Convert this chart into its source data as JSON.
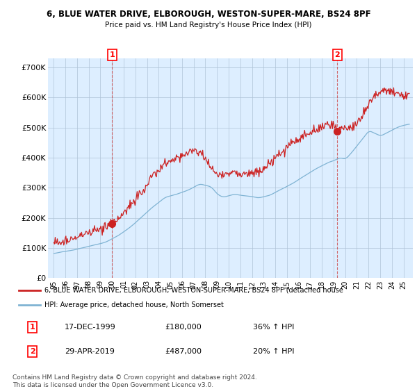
{
  "title": "6, BLUE WATER DRIVE, ELBOROUGH, WESTON-SUPER-MARE, BS24 8PF",
  "subtitle": "Price paid vs. HM Land Registry's House Price Index (HPI)",
  "ylabel_ticks": [
    "£0",
    "£100K",
    "£200K",
    "£300K",
    "£400K",
    "£500K",
    "£600K",
    "£700K"
  ],
  "ytick_vals": [
    0,
    100000,
    200000,
    300000,
    400000,
    500000,
    600000,
    700000
  ],
  "ylim": [
    0,
    730000
  ],
  "xlim_start": 1994.5,
  "xlim_end": 2025.8,
  "xtick_years": [
    1995,
    1996,
    1997,
    1998,
    1999,
    2000,
    2001,
    2002,
    2003,
    2004,
    2005,
    2006,
    2007,
    2008,
    2009,
    2010,
    2011,
    2012,
    2013,
    2014,
    2015,
    2016,
    2017,
    2018,
    2019,
    2020,
    2021,
    2022,
    2023,
    2024,
    2025
  ],
  "xtick_labels": [
    "95",
    "96",
    "97",
    "98",
    "99",
    "00",
    "01",
    "02",
    "03",
    "04",
    "05",
    "06",
    "07",
    "08",
    "09",
    "10",
    "11",
    "12",
    "13",
    "14",
    "15",
    "16",
    "17",
    "18",
    "19",
    "20",
    "21",
    "22",
    "23",
    "24",
    "25"
  ],
  "transaction1_x": 2000.0,
  "transaction1_y": 180000,
  "transaction1_label": "1",
  "transaction2_x": 2019.33,
  "transaction2_y": 487000,
  "transaction2_label": "2",
  "hpi_color": "#7fb3d3",
  "price_color": "#cc2222",
  "chart_bg_color": "#ddeeff",
  "legend_price_label": "6, BLUE WATER DRIVE, ELBOROUGH, WESTON-SUPER-MARE, BS24 8PF (detached house",
  "legend_hpi_label": "HPI: Average price, detached house, North Somerset",
  "table_row1": [
    "1",
    "17-DEC-1999",
    "£180,000",
    "36% ↑ HPI"
  ],
  "table_row2": [
    "2",
    "29-APR-2019",
    "£487,000",
    "20% ↑ HPI"
  ],
  "footer": "Contains HM Land Registry data © Crown copyright and database right 2024.\nThis data is licensed under the Open Government Licence v3.0.",
  "background_color": "#ffffff",
  "grid_color": "#b0c4d8"
}
